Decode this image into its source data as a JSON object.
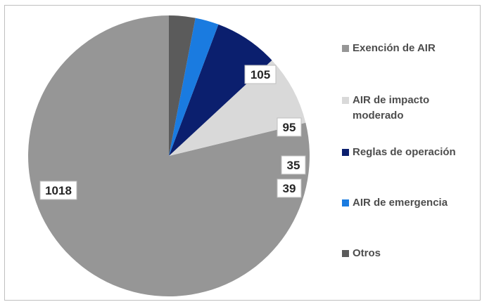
{
  "chart_data": {
    "type": "pie",
    "title": "",
    "legend_position": "right",
    "start_angle_deg": 90,
    "direction": "counterclockwise",
    "slices": [
      {
        "label": "Exención de AIR",
        "value": 1018,
        "color": "#969696"
      },
      {
        "label": "AIR de impacto moderado",
        "value": 105,
        "color": "#d9d9d9"
      },
      {
        "label": "Reglas de operación",
        "value": 95,
        "color": "#0b1f6e"
      },
      {
        "label": "AIR de emergencia",
        "value": 35,
        "color": "#1a7be0"
      },
      {
        "label": "Otros",
        "value": 39,
        "color": "#5b5b5b"
      }
    ]
  }
}
